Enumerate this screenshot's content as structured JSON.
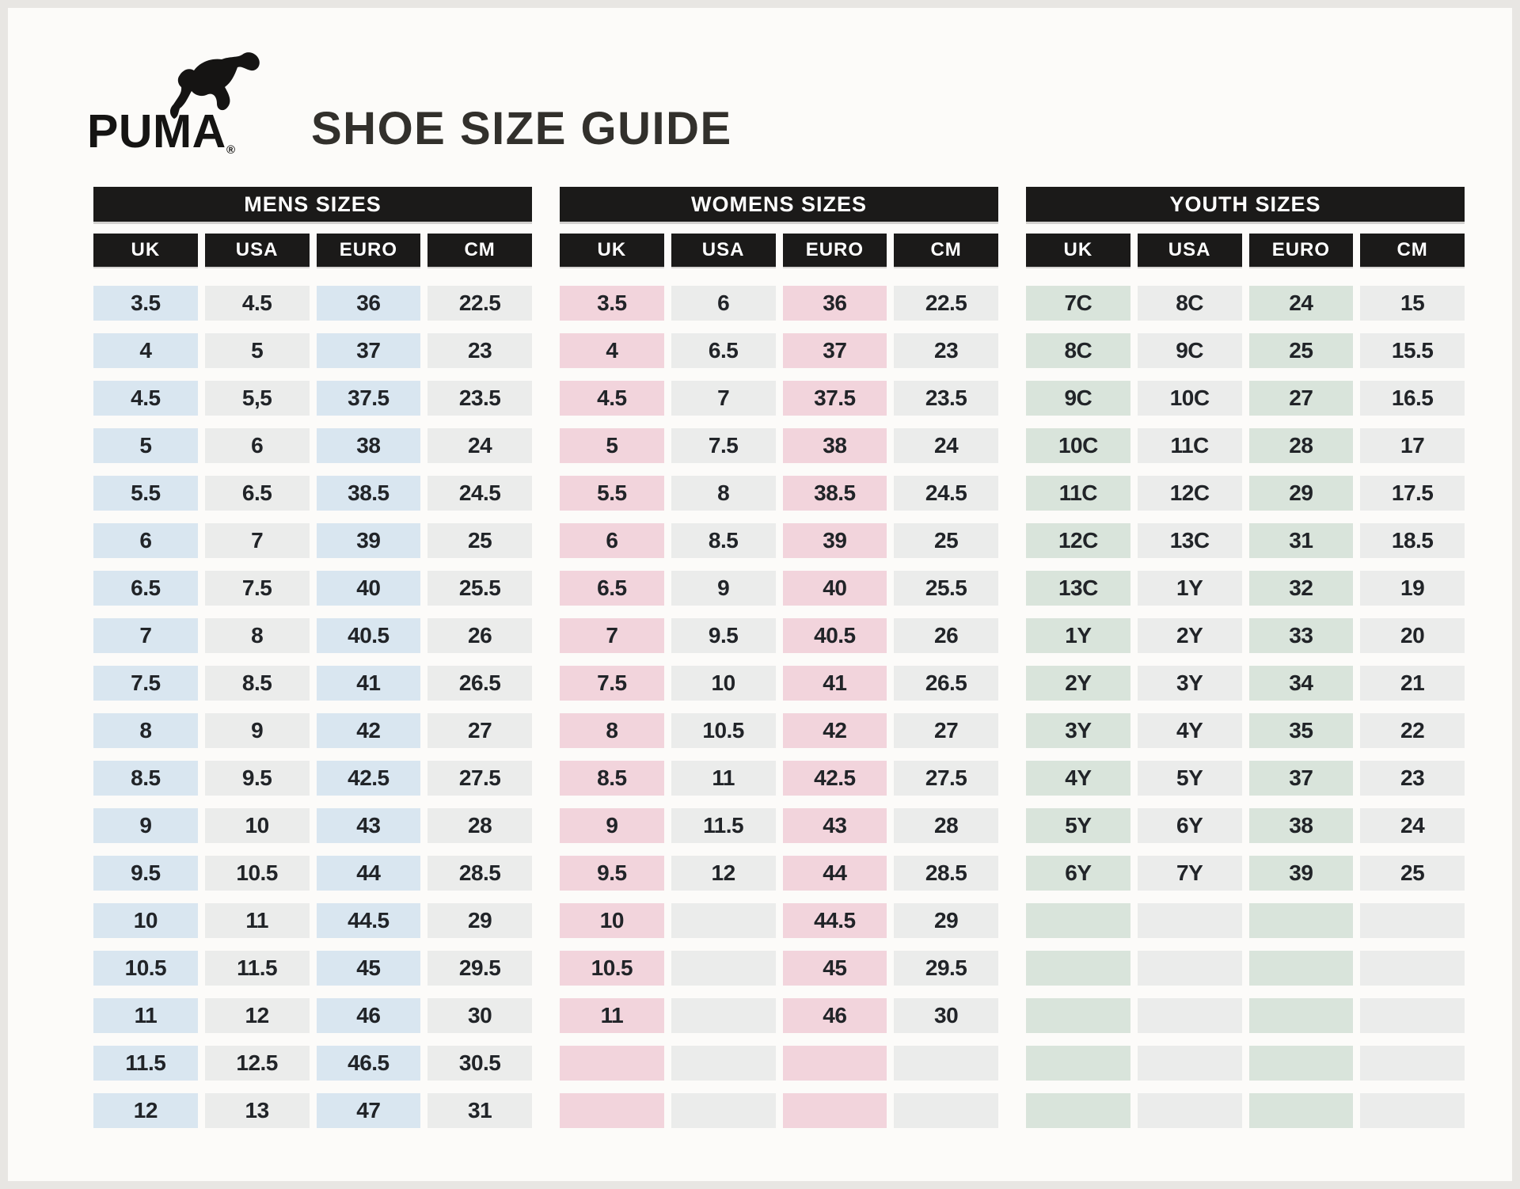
{
  "brand": {
    "wordmark": "PUMA",
    "registered_symbol": "®"
  },
  "title": "SHOE SIZE GUIDE",
  "columns": [
    "UK",
    "USA",
    "EURO",
    "CM"
  ],
  "colors": {
    "header_bar": "#1b1a19",
    "neutral_cell": "#ebeceb",
    "mens_accent": "#d9e6f0",
    "womens_accent": "#f2d4dc",
    "youth_accent": "#d9e4db",
    "page_background": "#fcfbf9",
    "text": "#212428"
  },
  "tables": [
    {
      "id": "mens",
      "label": "MENS SIZES",
      "accent_color": "#d9e6f0",
      "neutral_color": "#ebeceb",
      "rows": [
        [
          "3.5",
          "4.5",
          "36",
          "22.5"
        ],
        [
          "4",
          "5",
          "37",
          "23"
        ],
        [
          "4.5",
          "5,5",
          "37.5",
          "23.5"
        ],
        [
          "5",
          "6",
          "38",
          "24"
        ],
        [
          "5.5",
          "6.5",
          "38.5",
          "24.5"
        ],
        [
          "6",
          "7",
          "39",
          "25"
        ],
        [
          "6.5",
          "7.5",
          "40",
          "25.5"
        ],
        [
          "7",
          "8",
          "40.5",
          "26"
        ],
        [
          "7.5",
          "8.5",
          "41",
          "26.5"
        ],
        [
          "8",
          "9",
          "42",
          "27"
        ],
        [
          "8.5",
          "9.5",
          "42.5",
          "27.5"
        ],
        [
          "9",
          "10",
          "43",
          "28"
        ],
        [
          "9.5",
          "10.5",
          "44",
          "28.5"
        ],
        [
          "10",
          "11",
          "44.5",
          "29"
        ],
        [
          "10.5",
          "11.5",
          "45",
          "29.5"
        ],
        [
          "11",
          "12",
          "46",
          "30"
        ],
        [
          "11.5",
          "12.5",
          "46.5",
          "30.5"
        ],
        [
          "12",
          "13",
          "47",
          "31"
        ]
      ]
    },
    {
      "id": "womens",
      "label": "WOMENS SIZES",
      "accent_color": "#f2d4dc",
      "neutral_color": "#ebeceb",
      "rows": [
        [
          "3.5",
          "6",
          "36",
          "22.5"
        ],
        [
          "4",
          "6.5",
          "37",
          "23"
        ],
        [
          "4.5",
          "7",
          "37.5",
          "23.5"
        ],
        [
          "5",
          "7.5",
          "38",
          "24"
        ],
        [
          "5.5",
          "8",
          "38.5",
          "24.5"
        ],
        [
          "6",
          "8.5",
          "39",
          "25"
        ],
        [
          "6.5",
          "9",
          "40",
          "25.5"
        ],
        [
          "7",
          "9.5",
          "40.5",
          "26"
        ],
        [
          "7.5",
          "10",
          "41",
          "26.5"
        ],
        [
          "8",
          "10.5",
          "42",
          "27"
        ],
        [
          "8.5",
          "11",
          "42.5",
          "27.5"
        ],
        [
          "9",
          "11.5",
          "43",
          "28"
        ],
        [
          "9.5",
          "12",
          "44",
          "28.5"
        ],
        [
          "10",
          "",
          "44.5",
          "29"
        ],
        [
          "10.5",
          "",
          "45",
          "29.5"
        ],
        [
          "11",
          "",
          "46",
          "30"
        ],
        [
          "",
          "",
          "",
          ""
        ],
        [
          "",
          "",
          "",
          ""
        ]
      ]
    },
    {
      "id": "youth",
      "label": "YOUTH SIZES",
      "accent_color": "#d9e4db",
      "neutral_color": "#ebeceb",
      "rows": [
        [
          "7C",
          "8C",
          "24",
          "15"
        ],
        [
          "8C",
          "9C",
          "25",
          "15.5"
        ],
        [
          "9C",
          "10C",
          "27",
          "16.5"
        ],
        [
          "10C",
          "11C",
          "28",
          "17"
        ],
        [
          "11C",
          "12C",
          "29",
          "17.5"
        ],
        [
          "12C",
          "13C",
          "31",
          "18.5"
        ],
        [
          "13C",
          "1Y",
          "32",
          "19"
        ],
        [
          "1Y",
          "2Y",
          "33",
          "20"
        ],
        [
          "2Y",
          "3Y",
          "34",
          "21"
        ],
        [
          "3Y",
          "4Y",
          "35",
          "22"
        ],
        [
          "4Y",
          "5Y",
          "37",
          "23"
        ],
        [
          "5Y",
          "6Y",
          "38",
          "24"
        ],
        [
          "6Y",
          "7Y",
          "39",
          "25"
        ],
        [
          "",
          "",
          "",
          ""
        ],
        [
          "",
          "",
          "",
          ""
        ],
        [
          "",
          "",
          "",
          ""
        ],
        [
          "",
          "",
          "",
          ""
        ],
        [
          "",
          "",
          "",
          ""
        ]
      ]
    }
  ]
}
